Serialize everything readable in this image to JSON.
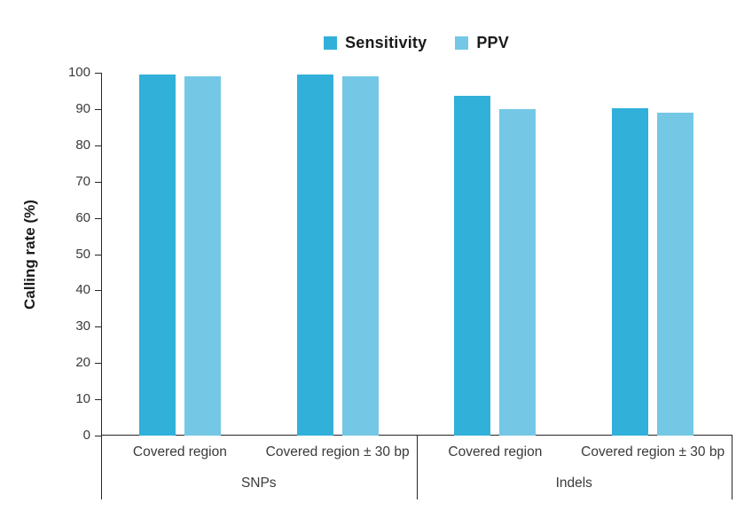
{
  "chart_data": {
    "type": "bar",
    "title": "",
    "ylabel": "Calling rate (%)",
    "xlabel": "",
    "ylim": [
      0,
      100
    ],
    "yticks": [
      0,
      10,
      20,
      30,
      40,
      50,
      60,
      70,
      80,
      90,
      100
    ],
    "grid": false,
    "legend_position": "top-center",
    "group_labels": [
      "SNPs",
      "Indels"
    ],
    "categories": [
      "Covered region",
      "Covered region ± 30 bp",
      "Covered region",
      "Covered region ± 30 bp"
    ],
    "category_groups": [
      0,
      0,
      1,
      1
    ],
    "series": [
      {
        "name": "Sensitivity",
        "color": "#31B0DA",
        "values": [
          99.5,
          99.5,
          93.7,
          90.2
        ]
      },
      {
        "name": "PPV",
        "color": "#74C8E5",
        "values": [
          99.0,
          99.0,
          90.0,
          88.9
        ]
      }
    ]
  }
}
